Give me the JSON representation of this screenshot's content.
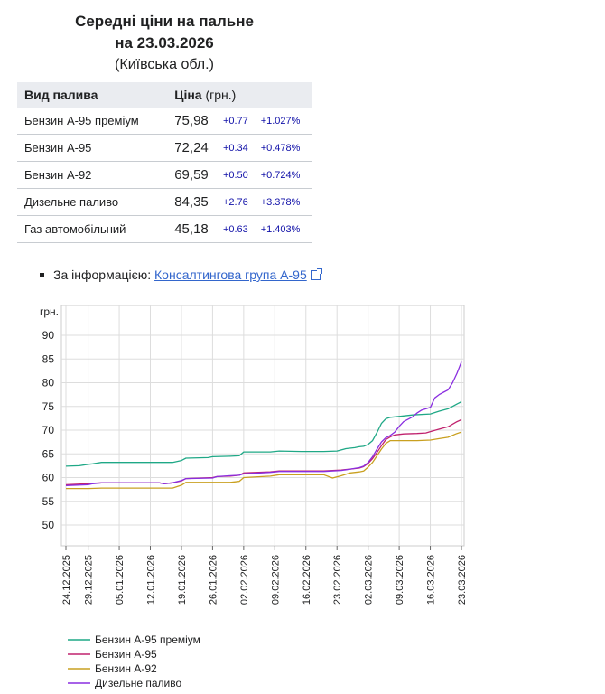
{
  "header": {
    "title_line1": "Середні ціни на пальне",
    "title_line2": "на 23.03.2026",
    "region": "(Київська обл.)"
  },
  "table": {
    "col_fuel": "Вид палива",
    "col_price": "Ціна",
    "col_price_unit": "(грн.)",
    "rows": [
      {
        "fuel": "Бензин А-95 преміум",
        "price": "75,98",
        "abs": "+0.77",
        "pct": "+1.027%"
      },
      {
        "fuel": "Бензин А-95",
        "price": "72,24",
        "abs": "+0.34",
        "pct": "+0.478%"
      },
      {
        "fuel": "Бензин А-92",
        "price": "69,59",
        "abs": "+0.50",
        "pct": "+0.724%"
      },
      {
        "fuel": "Дизельне паливо",
        "price": "84,35",
        "abs": "+2.76",
        "pct": "+3.378%"
      },
      {
        "fuel": "Газ автомобільний",
        "price": "45,18",
        "abs": "+0.63",
        "pct": "+1.403%"
      }
    ]
  },
  "source": {
    "prefix": "За інформацією:",
    "link_text": "Консалтингова група А-95"
  },
  "chart_data": {
    "type": "line",
    "ylabel": "грн.",
    "ylim": [
      45,
      90
    ],
    "yticks": [
      90,
      85,
      80,
      75,
      70,
      65,
      60,
      55,
      50
    ],
    "xlim": [
      "2025-12-24",
      "2026-03-23"
    ],
    "xticks": [
      "24.12.2025",
      "29.12.2025",
      "05.01.2026",
      "12.01.2026",
      "19.01.2026",
      "26.01.2026",
      "02.02.2026",
      "09.02.2026",
      "16.02.2026",
      "23.02.2026",
      "02.03.2026",
      "09.03.2026",
      "16.03.2026",
      "23.03.2026"
    ],
    "grid": true,
    "legend_position": "bottom-left",
    "series": [
      {
        "name": "Бензин А-95 преміум",
        "color": "#1fa886",
        "x": [
          "2025-12-24",
          "2025-12-27",
          "2025-12-29",
          "2025-12-30",
          "2026-01-01",
          "2026-01-10",
          "2026-01-17",
          "2026-01-19",
          "2026-01-20",
          "2026-01-25",
          "2026-01-26",
          "2026-01-30",
          "2026-02-01",
          "2026-02-02",
          "2026-02-08",
          "2026-02-10",
          "2026-02-15",
          "2026-02-20",
          "2026-02-23",
          "2026-02-25",
          "2026-02-27",
          "2026-02-28",
          "2026-03-01",
          "2026-03-02",
          "2026-03-03",
          "2026-03-04",
          "2026-03-05",
          "2026-03-06",
          "2026-03-07",
          "2026-03-09",
          "2026-03-12",
          "2026-03-16",
          "2026-03-18",
          "2026-03-20",
          "2026-03-22",
          "2026-03-23"
        ],
        "y": [
          62.4,
          62.5,
          62.8,
          62.9,
          63.2,
          63.2,
          63.2,
          63.6,
          64.1,
          64.2,
          64.4,
          64.5,
          64.6,
          65.4,
          65.4,
          65.6,
          65.5,
          65.5,
          65.6,
          66.1,
          66.3,
          66.5,
          66.6,
          67.0,
          67.8,
          69.5,
          71.4,
          72.4,
          72.7,
          72.9,
          73.2,
          73.4,
          74.0,
          74.5,
          75.5,
          76.0
        ]
      },
      {
        "name": "Бензин А-95",
        "color": "#c0226e",
        "x": [
          "2025-12-24",
          "2025-12-29",
          "2025-12-30",
          "2026-01-01",
          "2026-01-14",
          "2026-01-15",
          "2026-01-17",
          "2026-01-19",
          "2026-01-20",
          "2026-01-26",
          "2026-01-27",
          "2026-01-30",
          "2026-02-01",
          "2026-02-02",
          "2026-02-08",
          "2026-02-10",
          "2026-02-15",
          "2026-02-20",
          "2026-02-24",
          "2026-02-26",
          "2026-02-28",
          "2026-03-01",
          "2026-03-02",
          "2026-03-03",
          "2026-03-04",
          "2026-03-05",
          "2026-03-06",
          "2026-03-07",
          "2026-03-08",
          "2026-03-10",
          "2026-03-13",
          "2026-03-15",
          "2026-03-16",
          "2026-03-18",
          "2026-03-20",
          "2026-03-22",
          "2026-03-23"
        ],
        "y": [
          58.5,
          58.7,
          58.8,
          58.9,
          58.9,
          58.7,
          58.9,
          59.3,
          59.8,
          60.0,
          60.2,
          60.3,
          60.5,
          61.0,
          61.2,
          61.4,
          61.4,
          61.4,
          61.6,
          61.8,
          62.0,
          62.3,
          63.0,
          64.0,
          65.3,
          66.7,
          68.0,
          68.6,
          69.0,
          69.2,
          69.3,
          69.4,
          69.7,
          70.2,
          70.7,
          71.8,
          72.2
        ]
      },
      {
        "name": "Бензин А-92",
        "color": "#c9a020",
        "x": [
          "2025-12-24",
          "2025-12-29",
          "2026-01-01",
          "2026-01-17",
          "2026-01-19",
          "2026-01-20",
          "2026-01-26",
          "2026-01-30",
          "2026-02-01",
          "2026-02-02",
          "2026-02-08",
          "2026-02-10",
          "2026-02-15",
          "2026-02-20",
          "2026-02-22",
          "2026-02-24",
          "2026-02-26",
          "2026-02-28",
          "2026-03-01",
          "2026-03-02",
          "2026-03-03",
          "2026-03-04",
          "2026-03-05",
          "2026-03-06",
          "2026-03-07",
          "2026-03-10",
          "2026-03-13",
          "2026-03-16",
          "2026-03-18",
          "2026-03-20",
          "2026-03-22",
          "2026-03-23"
        ],
        "y": [
          57.7,
          57.7,
          57.8,
          57.8,
          58.4,
          59.0,
          59.0,
          59.0,
          59.2,
          60.0,
          60.3,
          60.6,
          60.6,
          60.6,
          59.9,
          60.4,
          61.0,
          61.2,
          61.4,
          62.2,
          63.2,
          64.6,
          66.0,
          67.2,
          67.8,
          67.8,
          67.8,
          67.9,
          68.2,
          68.5,
          69.3,
          69.6
        ]
      },
      {
        "name": "Дизельне паливо",
        "color": "#8a2ee0",
        "x": [
          "2025-12-24",
          "2025-12-29",
          "2025-12-30",
          "2026-01-01",
          "2026-01-14",
          "2026-01-15",
          "2026-01-17",
          "2026-01-19",
          "2026-01-20",
          "2026-01-26",
          "2026-01-27",
          "2026-01-30",
          "2026-02-01",
          "2026-02-02",
          "2026-02-08",
          "2026-02-10",
          "2026-02-15",
          "2026-02-20",
          "2026-02-24",
          "2026-02-26",
          "2026-02-28",
          "2026-03-01",
          "2026-03-02",
          "2026-03-03",
          "2026-03-04",
          "2026-03-05",
          "2026-03-06",
          "2026-03-07",
          "2026-03-08",
          "2026-03-09",
          "2026-03-10",
          "2026-03-12",
          "2026-03-13",
          "2026-03-14",
          "2026-03-15",
          "2026-03-16",
          "2026-03-17",
          "2026-03-18",
          "2026-03-19",
          "2026-03-20",
          "2026-03-21",
          "2026-03-22",
          "2026-03-23"
        ],
        "y": [
          58.3,
          58.5,
          58.7,
          58.9,
          58.9,
          58.7,
          58.9,
          59.4,
          59.8,
          59.9,
          60.2,
          60.4,
          60.5,
          60.8,
          61.1,
          61.3,
          61.3,
          61.3,
          61.5,
          61.8,
          62.1,
          62.4,
          63.2,
          64.4,
          66.0,
          67.5,
          68.4,
          68.9,
          69.6,
          70.8,
          71.8,
          72.8,
          73.6,
          74.2,
          74.5,
          74.8,
          76.8,
          77.5,
          78.0,
          78.5,
          80.0,
          82.0,
          84.4
        ]
      }
    ]
  }
}
